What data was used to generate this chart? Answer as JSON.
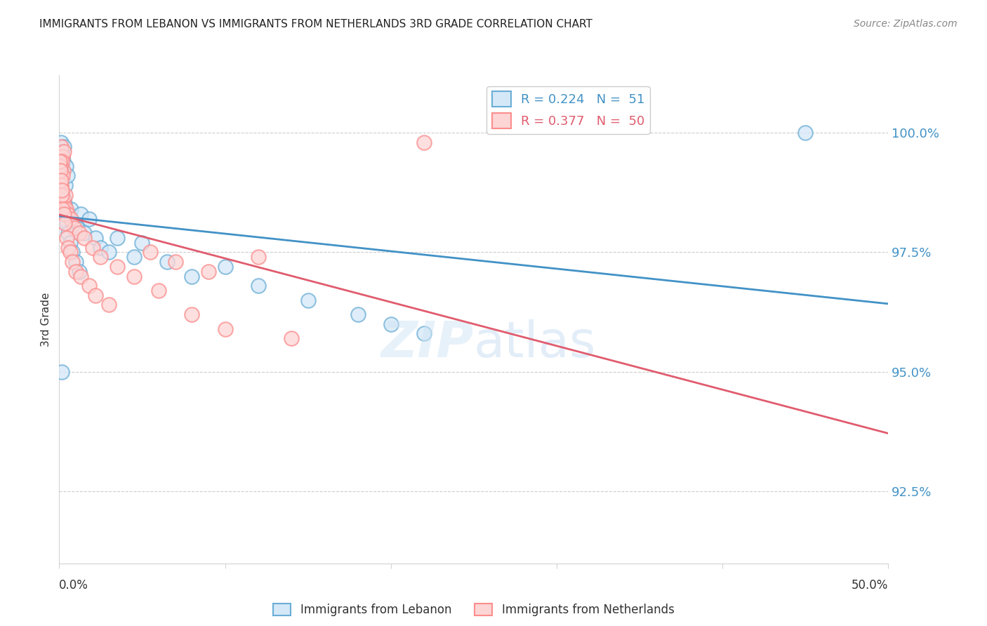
{
  "title": "IMMIGRANTS FROM LEBANON VS IMMIGRANTS FROM NETHERLANDS 3RD GRADE CORRELATION CHART",
  "source": "Source: ZipAtlas.com",
  "ylabel": "3rd Grade",
  "yticks": [
    92.5,
    95.0,
    97.5,
    100.0
  ],
  "ytick_labels": [
    "92.5%",
    "95.0%",
    "97.5%",
    "100.0%"
  ],
  "xlim": [
    0.0,
    50.0
  ],
  "ylim": [
    91.0,
    101.2
  ],
  "legend_label_blue": "Immigrants from Lebanon",
  "legend_label_pink": "Immigrants from Netherlands",
  "blue_color": "#6baed6",
  "pink_color": "#fc8d8d",
  "blue_line_color": "#4292c6",
  "pink_line_color": "#e05c6e",
  "blue_scatter_x": [
    0.1,
    0.2,
    0.3,
    0.15,
    0.25,
    0.05,
    0.08,
    0.12,
    0.18,
    0.22,
    0.28,
    0.35,
    0.4,
    0.5,
    0.6,
    0.7,
    0.9,
    1.1,
    1.3,
    1.5,
    1.8,
    2.2,
    2.5,
    3.0,
    3.5,
    4.5,
    5.0,
    6.5,
    8.0,
    10.0,
    12.0,
    15.0,
    18.0,
    20.0,
    22.0,
    0.04,
    0.06,
    0.09,
    0.13,
    0.17,
    0.21,
    0.27,
    0.33,
    0.45,
    0.55,
    0.65,
    0.8,
    1.0,
    1.2,
    45.0,
    0.16
  ],
  "blue_scatter_y": [
    99.8,
    99.5,
    99.7,
    99.6,
    99.4,
    98.8,
    99.0,
    99.1,
    98.7,
    98.5,
    98.6,
    98.9,
    99.3,
    99.1,
    98.3,
    98.4,
    98.1,
    98.0,
    98.3,
    97.9,
    98.2,
    97.8,
    97.6,
    97.5,
    97.8,
    97.4,
    97.7,
    97.3,
    97.0,
    97.2,
    96.8,
    96.5,
    96.2,
    96.0,
    95.8,
    99.2,
    99.3,
    98.9,
    98.6,
    98.4,
    98.3,
    98.2,
    98.5,
    98.1,
    97.9,
    97.7,
    97.5,
    97.3,
    97.1,
    100.0,
    95.0
  ],
  "pink_scatter_x": [
    0.1,
    0.2,
    0.3,
    0.15,
    0.25,
    0.08,
    0.12,
    0.18,
    0.22,
    0.28,
    0.35,
    0.4,
    0.5,
    0.7,
    0.9,
    1.2,
    1.5,
    2.0,
    2.5,
    3.5,
    4.5,
    5.5,
    7.0,
    9.0,
    12.0,
    0.06,
    0.09,
    0.13,
    0.17,
    0.21,
    0.27,
    0.33,
    0.45,
    0.55,
    0.65,
    0.8,
    1.0,
    1.3,
    1.8,
    2.2,
    3.0,
    6.0,
    8.0,
    10.0,
    14.0,
    0.04,
    0.07,
    0.11,
    0.16,
    22.0
  ],
  "pink_scatter_y": [
    99.7,
    99.5,
    99.6,
    99.4,
    99.2,
    99.0,
    98.8,
    99.1,
    98.6,
    98.5,
    98.7,
    98.4,
    98.3,
    98.2,
    98.0,
    97.9,
    97.8,
    97.6,
    97.4,
    97.2,
    97.0,
    97.5,
    97.3,
    97.1,
    97.4,
    99.3,
    99.0,
    98.9,
    98.7,
    98.4,
    98.3,
    98.1,
    97.8,
    97.6,
    97.5,
    97.3,
    97.1,
    97.0,
    96.8,
    96.6,
    96.4,
    96.7,
    96.2,
    95.9,
    95.7,
    99.4,
    99.2,
    99.0,
    98.8,
    99.8
  ]
}
